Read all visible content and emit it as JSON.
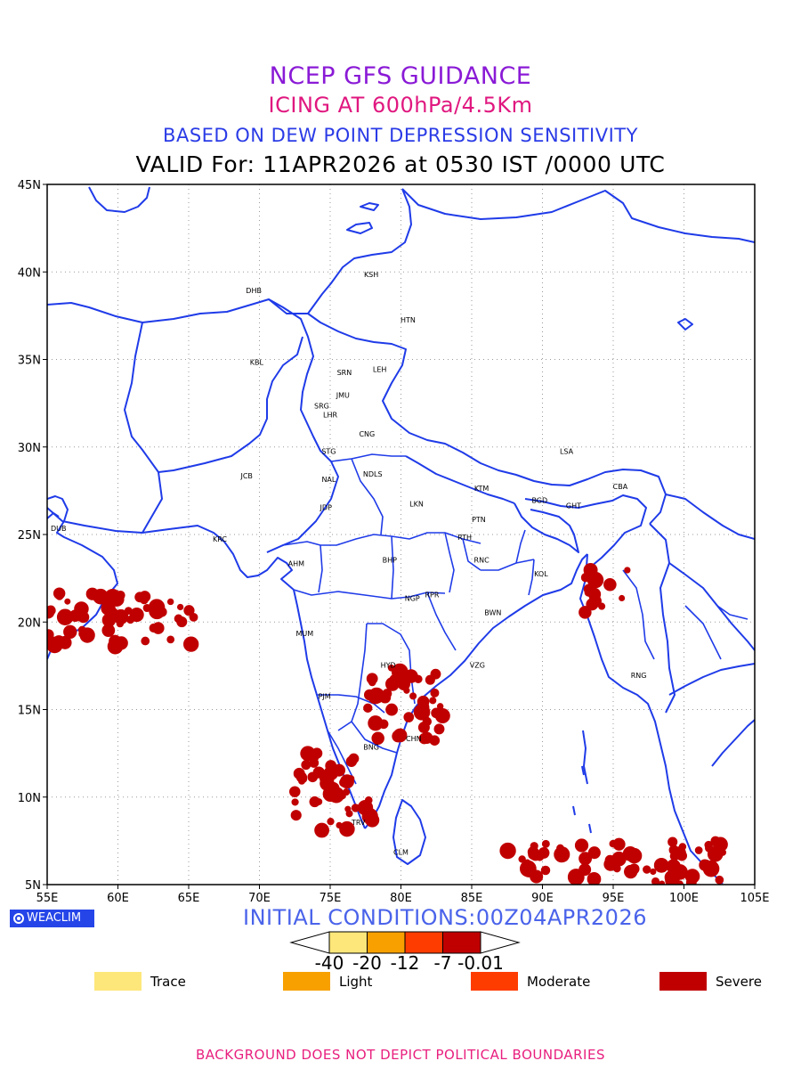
{
  "titles": {
    "line1": "NCEP GFS GUIDANCE",
    "line2": "ICING AT 600hPa/4.5Km",
    "line3": "BASED ON DEW POINT DEPRESSION SENSITIVITY",
    "line4": "VALID For: 11APR2026 at 0530 IST /0000 UTC"
  },
  "axes": {
    "lat_labels": [
      "45N",
      "40N",
      "35N",
      "30N",
      "25N",
      "20N",
      "15N",
      "10N",
      "5N"
    ],
    "lon_labels": [
      "55E",
      "60E",
      "65E",
      "70E",
      "75E",
      "80E",
      "85E",
      "90E",
      "95E",
      "100E",
      "105E"
    ],
    "lat_range": [
      5,
      45
    ],
    "lon_range": [
      55,
      105
    ],
    "grid": true
  },
  "cities": [
    {
      "code": "KSH",
      "lon": 77.9,
      "lat": 39.7
    },
    {
      "code": "DHB",
      "lon": 69.6,
      "lat": 38.8
    },
    {
      "code": "HTN",
      "lon": 80.5,
      "lat": 37.1
    },
    {
      "code": "KBL",
      "lon": 69.8,
      "lat": 34.7
    },
    {
      "code": "SRN",
      "lon": 76.0,
      "lat": 34.1
    },
    {
      "code": "LEH",
      "lon": 78.5,
      "lat": 34.3
    },
    {
      "code": "JMU",
      "lon": 75.9,
      "lat": 32.8
    },
    {
      "code": "SRG",
      "lon": 74.4,
      "lat": 32.2
    },
    {
      "code": "LHR",
      "lon": 75.0,
      "lat": 31.7
    },
    {
      "code": "CNG",
      "lon": 77.6,
      "lat": 30.6
    },
    {
      "code": "STG",
      "lon": 74.9,
      "lat": 29.6
    },
    {
      "code": "JCB",
      "lon": 69.1,
      "lat": 28.2
    },
    {
      "code": "NAL",
      "lon": 74.9,
      "lat": 28.0
    },
    {
      "code": "NDLS",
      "lon": 78.0,
      "lat": 28.3
    },
    {
      "code": "LSA",
      "lon": 91.7,
      "lat": 29.6
    },
    {
      "code": "KTM",
      "lon": 85.7,
      "lat": 27.5
    },
    {
      "code": "CBA",
      "lon": 95.5,
      "lat": 27.6
    },
    {
      "code": "BGD",
      "lon": 89.8,
      "lat": 26.8
    },
    {
      "code": "JDP",
      "lon": 74.7,
      "lat": 26.4
    },
    {
      "code": "LKN",
      "lon": 81.1,
      "lat": 26.6
    },
    {
      "code": "GHT",
      "lon": 92.2,
      "lat": 26.5
    },
    {
      "code": "DUB",
      "lon": 55.8,
      "lat": 25.2
    },
    {
      "code": "PTN",
      "lon": 85.5,
      "lat": 25.7
    },
    {
      "code": "KRC",
      "lon": 67.2,
      "lat": 24.6
    },
    {
      "code": "RTH",
      "lon": 84.5,
      "lat": 24.7
    },
    {
      "code": "AHM",
      "lon": 72.6,
      "lat": 23.2
    },
    {
      "code": "BHP",
      "lon": 79.2,
      "lat": 23.4
    },
    {
      "code": "RNC",
      "lon": 85.7,
      "lat": 23.4
    },
    {
      "code": "KOL",
      "lon": 89.9,
      "lat": 22.6
    },
    {
      "code": "NGP",
      "lon": 80.8,
      "lat": 21.2
    },
    {
      "code": "RPR",
      "lon": 82.2,
      "lat": 21.4
    },
    {
      "code": "BWN",
      "lon": 86.5,
      "lat": 20.4
    },
    {
      "code": "MUM",
      "lon": 73.2,
      "lat": 19.2
    },
    {
      "code": "HYD",
      "lon": 79.1,
      "lat": 17.4
    },
    {
      "code": "VZG",
      "lon": 85.4,
      "lat": 17.4
    },
    {
      "code": "RNG",
      "lon": 96.8,
      "lat": 16.8
    },
    {
      "code": "PJM",
      "lon": 74.6,
      "lat": 15.6
    },
    {
      "code": "CHN",
      "lon": 80.9,
      "lat": 13.2
    },
    {
      "code": "BNG",
      "lon": 77.9,
      "lat": 12.7
    },
    {
      "code": "TRV",
      "lon": 77.0,
      "lat": 8.4
    },
    {
      "code": "CLM",
      "lon": 80.0,
      "lat": 6.7
    }
  ],
  "icing_regions": {
    "severity": "Severe",
    "color": "#c00000",
    "areas": [
      {
        "region": "Arabian Sea north",
        "lon": [
          55,
          65.5
        ],
        "lat": [
          18.5,
          21.7
        ]
      },
      {
        "region": "Interior Karnataka / Andhra",
        "lon": [
          77.5,
          83
        ],
        "lat": [
          13,
          17.5
        ]
      },
      {
        "region": "Lakshadweep / Kerala coast",
        "lon": [
          72.5,
          78
        ],
        "lat": [
          8,
          12.5
        ]
      },
      {
        "region": "Myanmar / Bangladesh coast",
        "lon": [
          93,
          96
        ],
        "lat": [
          20.5,
          23
        ]
      },
      {
        "region": "Andaman Sea / Bay of Bengal south",
        "lon": [
          87.5,
          103
        ],
        "lat": [
          5,
          7.5
        ]
      }
    ]
  },
  "bottom": {
    "logo": "WEACLIM",
    "initial_conditions": "INITIAL CONDITIONS:00Z04APR2026",
    "colorbar_labels": [
      "-40",
      "-20",
      "-12",
      "-7",
      "-0.01"
    ],
    "colorbar_colors": [
      "#fde77a",
      "#f7a000",
      "#ff3c00",
      "#c00000"
    ],
    "legend": [
      {
        "label": "Trace",
        "color": "#fde77a"
      },
      {
        "label": "Light",
        "color": "#f7a000"
      },
      {
        "label": "Moderate",
        "color": "#ff3c00"
      },
      {
        "label": "Severe",
        "color": "#c00000"
      }
    ],
    "note": "BACKGROUND DOES NOT DEPICT POLITICAL BOUNDARIES"
  }
}
